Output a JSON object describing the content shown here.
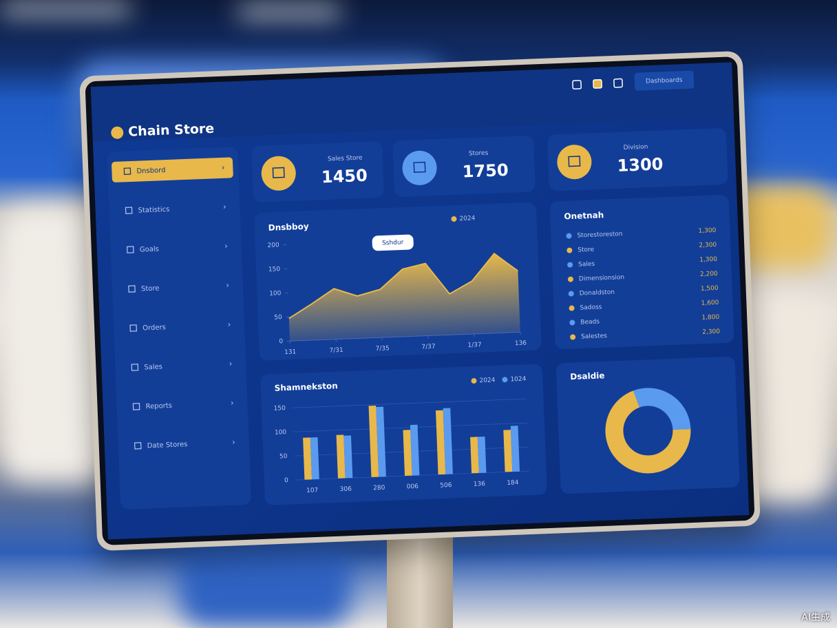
{
  "header": {
    "brand": "Chain Store",
    "button": "Dashboards"
  },
  "sidebar": {
    "items": [
      "Dnsbord",
      "Statistics",
      "Goals",
      "Store",
      "Orders",
      "Sales",
      "Reports",
      "Date Stores"
    ]
  },
  "kpis": [
    {
      "label": "Sales Store",
      "value": "1450"
    },
    {
      "label": "Stores",
      "value": "1750"
    },
    {
      "label": "Division",
      "value": "1300"
    }
  ],
  "list": {
    "title": "Onetnah",
    "rows": [
      [
        "Storestoreston",
        "1,300"
      ],
      [
        "Store",
        "2,300"
      ],
      [
        "Sales",
        "1,300"
      ],
      [
        "Dimensionsion",
        "2,200"
      ],
      [
        "Donaldston",
        "1,500"
      ],
      [
        "Sadoss",
        "1,600"
      ],
      [
        "Beads",
        "1,800"
      ],
      [
        "Salestes",
        "2,300"
      ]
    ]
  },
  "chart_data": [
    {
      "type": "area",
      "title": "Dnsbboy",
      "annotation": "Sshdur",
      "x": [
        0,
        0.5,
        1,
        1.5,
        2,
        2.5,
        3,
        3.5,
        4,
        4.5,
        5
      ],
      "series": [
        {
          "name": "2024",
          "color": "#e8b84a",
          "values": [
            47,
            75,
            105,
            88,
            100,
            140,
            150,
            85,
            110,
            165,
            127
          ]
        }
      ],
      "xlim": [
        0,
        5
      ],
      "ylim": [
        0,
        200
      ],
      "yticks": [
        0,
        50,
        100,
        150,
        200
      ],
      "xticks": [
        {
          "value": 0,
          "label": "131"
        },
        {
          "value": 1,
          "label": "7/31"
        },
        {
          "value": 2,
          "label": "7/35"
        },
        {
          "value": 3,
          "label": "7/37"
        },
        {
          "value": 4,
          "label": "1/37"
        },
        {
          "value": 5,
          "label": "136"
        }
      ]
    },
    {
      "type": "bar",
      "title": "Shamnekston",
      "categories": [
        "107",
        "306",
        "280",
        "006",
        "506",
        "136",
        "184"
      ],
      "series": [
        {
          "name": "2024",
          "color": "#e8b84a",
          "values": [
            87,
            90,
            148,
            95,
            133,
            75,
            87
          ]
        },
        {
          "name": "1024",
          "color": "#5a9bf0",
          "values": [
            87,
            88,
            145,
            105,
            137,
            75,
            95
          ]
        }
      ],
      "ylim": [
        0,
        160
      ],
      "yticks": [
        0,
        50,
        100,
        150
      ],
      "grid": true
    },
    {
      "type": "donut",
      "title": "Dsaldie",
      "values": [
        70,
        30
      ],
      "colors": [
        "#e8b84a",
        "#5a9bf0"
      ]
    }
  ],
  "watermark": "AI生成"
}
